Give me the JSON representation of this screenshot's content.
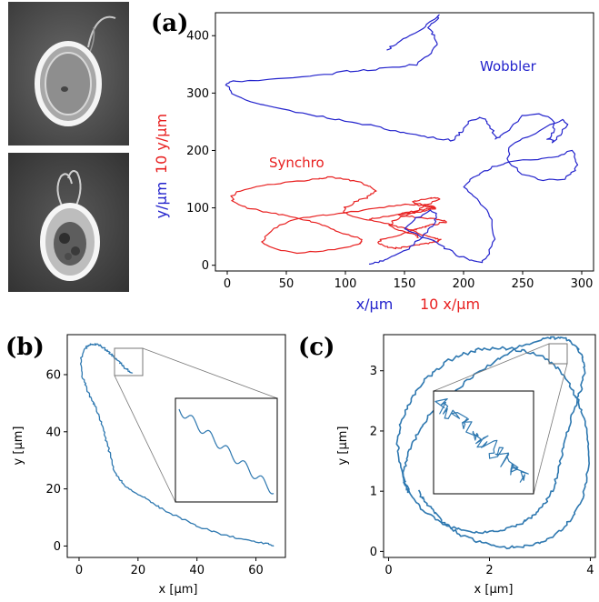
{
  "panels": {
    "a": {
      "label": "(a)",
      "ylabel_red": "10 y/μm",
      "ylabel_blue": "y/μm",
      "xlabel_blue": "x/μm",
      "xlabel_red": "10 x/μm",
      "series_wobbler": "Wobbler",
      "series_synchro": "Synchro",
      "xticks": [
        "0",
        "50",
        "100",
        "150",
        "200",
        "250",
        "300"
      ],
      "yticks": [
        "0",
        "100",
        "200",
        "300",
        "400"
      ]
    },
    "b": {
      "label": "(b)",
      "xlabel": "x [μm]",
      "ylabel": "y [μm]",
      "xticks": [
        "0",
        "20",
        "40",
        "60"
      ],
      "yticks": [
        "0",
        "20",
        "40",
        "60"
      ]
    },
    "c": {
      "label": "(c)",
      "xlabel": "x [μm]",
      "ylabel": "y [μm]",
      "xticks": [
        "0",
        "2",
        "4"
      ],
      "yticks": [
        "0",
        "1",
        "2",
        "3"
      ]
    }
  },
  "colors": {
    "wobbler": "#2222cc",
    "synchro": "#e82020",
    "trajectory": "#2e78b0",
    "axis": "#000000"
  },
  "chart_data": [
    {
      "type": "line",
      "panel": "a",
      "xlim": [
        -10,
        310
      ],
      "ylim": [
        -10,
        440
      ],
      "series": [
        {
          "name": "Wobbler",
          "x": [
            120,
            128,
            135,
            150,
            160,
            170,
            175,
            178,
            172,
            160,
            150,
            162,
            175,
            185,
            195,
            205,
            215,
            222,
            226,
            225,
            218,
            208,
            200,
            205,
            215,
            225,
            240,
            262,
            280,
            292,
            296,
            294,
            285,
            268,
            250,
            238,
            238,
            250,
            270,
            284,
            288,
            282,
            276,
            272,
            276,
            278,
            265,
            250,
            240,
            232,
            228,
            225,
            220,
            214,
            205,
            200,
            195,
            190,
            175,
            160,
            145,
            130,
            110,
            90,
            70,
            45,
            20,
            5,
            0,
            4,
            20,
            50,
            75,
            100,
            120,
            140,
            160,
            170,
            178,
            175,
            170,
            176,
            180,
            170,
            160,
            148,
            140,
            135
          ],
          "y": [
            2,
            5,
            12,
            25,
            40,
            58,
            72,
            88,
            95,
            82,
            65,
            52,
            42,
            30,
            18,
            10,
            6,
            20,
            45,
            80,
            100,
            120,
            135,
            150,
            160,
            172,
            180,
            185,
            190,
            200,
            180,
            165,
            150,
            148,
            158,
            180,
            205,
            220,
            240,
            255,
            245,
            228,
            215,
            220,
            232,
            250,
            265,
            260,
            240,
            225,
            220,
            235,
            250,
            258,
            250,
            235,
            225,
            218,
            222,
            228,
            232,
            240,
            248,
            255,
            262,
            272,
            285,
            300,
            315,
            320,
            322,
            325,
            330,
            338,
            340,
            345,
            350,
            365,
            385,
            400,
            415,
            425,
            435,
            420,
            405,
            395,
            382,
            375
          ]
        },
        {
          "name": "Synchro",
          "x": [
            120,
            125,
            135,
            145,
            152,
            158,
            165,
            170,
            175,
            177,
            172,
            165,
            158,
            150,
            140,
            128,
            115,
            100,
            85,
            70,
            55,
            45,
            38,
            32,
            30,
            35,
            45,
            60,
            75,
            90,
            100,
            110,
            115,
            112,
            105,
            95,
            88,
            80,
            72,
            62,
            50,
            40,
            30,
            20,
            12,
            5,
            4,
            8,
            20,
            35,
            50,
            65,
            75,
            80,
            88,
            95,
            105,
            112,
            118,
            122,
            125,
            122,
            118,
            110,
            105,
            100,
            98,
            102,
            112,
            122,
            132,
            140,
            148,
            155,
            160,
            162,
            168,
            172,
            175,
            178,
            180,
            178,
            174,
            170,
            164,
            158,
            150,
            145,
            140,
            135,
            130,
            128,
            130,
            135,
            145,
            150,
            155,
            158,
            162,
            165,
            168,
            172,
            178,
            182,
            186,
            184,
            178,
            170,
            160,
            150,
            145,
            148,
            152,
            158,
            164,
            168,
            172,
            175,
            170,
            165,
            160,
            158,
            160,
            165,
            170,
            175,
            180,
            176,
            170,
            165,
            160,
            152,
            145,
            140,
            138,
            142,
            148,
            155,
            160,
            162
          ],
          "y": [
            80,
            82,
            85,
            88,
            90,
            92,
            94,
            96,
            98,
            100,
            102,
            104,
            106,
            106,
            104,
            100,
            96,
            92,
            88,
            84,
            78,
            70,
            60,
            50,
            40,
            32,
            26,
            22,
            24,
            28,
            32,
            36,
            40,
            46,
            52,
            58,
            64,
            70,
            76,
            82,
            86,
            90,
            94,
            98,
            104,
            112,
            120,
            128,
            134,
            140,
            144,
            148,
            150,
            152,
            154,
            152,
            148,
            144,
            140,
            136,
            130,
            124,
            118,
            112,
            106,
            100,
            94,
            88,
            82,
            78,
            74,
            70,
            66,
            62,
            58,
            54,
            52,
            50,
            48,
            46,
            44,
            42,
            40,
            38,
            36,
            34,
            32,
            30,
            30,
            32,
            36,
            40,
            44,
            48,
            52,
            56,
            60,
            62,
            64,
            66,
            68,
            70,
            72,
            74,
            76,
            78,
            80,
            82,
            84,
            86,
            88,
            90,
            92,
            94,
            96,
            98,
            100,
            102,
            104,
            106,
            108,
            110,
            112,
            114,
            116,
            118,
            116,
            112,
            106,
            100,
            94,
            88,
            82,
            76,
            70,
            64,
            60,
            56,
            52,
            48
          ]
        }
      ]
    },
    {
      "type": "line",
      "panel": "b",
      "xlim": [
        -4,
        70
      ],
      "ylim": [
        -4,
        74
      ],
      "series": [
        {
          "x": [
            66,
            64,
            60,
            56,
            52,
            48,
            44,
            40,
            36,
            32,
            28,
            25,
            22,
            19,
            16,
            14,
            12,
            11,
            10,
            9,
            8,
            7,
            6,
            5,
            4,
            3,
            2,
            1,
            0.5,
            1,
            2,
            3,
            4,
            5,
            6,
            7,
            8,
            9,
            10,
            11,
            12,
            13,
            14,
            15,
            16,
            17,
            18
          ],
          "y": [
            0,
            0.8,
            1.5,
            2.3,
            3.2,
            4.2,
            5.5,
            7,
            9,
            11,
            13,
            15,
            17,
            19,
            21,
            23,
            26,
            30,
            34,
            38,
            42,
            45,
            48,
            50,
            52,
            54,
            57,
            60,
            64,
            67,
            69,
            70,
            70.5,
            70.7,
            70.6,
            70.2,
            69.6,
            68.8,
            68,
            67,
            66,
            65,
            64,
            63,
            62,
            61,
            60.5
          ]
        }
      ]
    },
    {
      "type": "line",
      "panel": "c",
      "xlim": [
        -0.1,
        4.1
      ],
      "ylim": [
        -0.1,
        3.6
      ],
      "series": [
        {
          "x": [
            0.6,
            0.7,
            0.85,
            1.0,
            1.2,
            1.45,
            1.75,
            2.05,
            2.35,
            2.65,
            2.95,
            3.2,
            3.45,
            3.65,
            3.82,
            3.92,
            3.97,
            3.95,
            3.88,
            3.75,
            3.6,
            3.45,
            3.25,
            3.0,
            2.7,
            2.4,
            2.1,
            1.8,
            1.5,
            1.2,
            0.95,
            0.72,
            0.52,
            0.36,
            0.24,
            0.18,
            0.2,
            0.3,
            0.45,
            0.65,
            0.9,
            1.15,
            1.45,
            1.75,
            2.05,
            2.35,
            2.65,
            2.9,
            3.1,
            3.25,
            3.35,
            3.42,
            3.5,
            3.6,
            3.72,
            3.82,
            3.88,
            3.85,
            3.75,
            3.6,
            3.4,
            3.15,
            2.85,
            2.55,
            2.25,
            1.95,
            1.65,
            1.35,
            1.05,
            0.8,
            0.6,
            0.45,
            0.35,
            0.3,
            0.32,
            0.4
          ],
          "y": [
            1.0,
            0.85,
            0.7,
            0.55,
            0.4,
            0.27,
            0.17,
            0.1,
            0.07,
            0.08,
            0.13,
            0.22,
            0.38,
            0.58,
            0.85,
            1.15,
            1.5,
            1.85,
            2.2,
            2.5,
            2.75,
            2.95,
            3.12,
            3.25,
            3.33,
            3.37,
            3.38,
            3.35,
            3.28,
            3.17,
            3.02,
            2.84,
            2.62,
            2.38,
            2.1,
            1.8,
            1.5,
            1.2,
            0.95,
            0.72,
            0.55,
            0.43,
            0.35,
            0.32,
            0.33,
            0.38,
            0.48,
            0.62,
            0.8,
            1.02,
            1.28,
            1.55,
            1.85,
            2.15,
            2.45,
            2.72,
            2.98,
            3.2,
            3.38,
            3.5,
            3.55,
            3.54,
            3.48,
            3.38,
            3.24,
            3.08,
            2.9,
            2.7,
            2.48,
            2.25,
            2.0,
            1.75,
            1.5,
            1.28,
            1.1,
            0.98
          ]
        }
      ]
    }
  ]
}
